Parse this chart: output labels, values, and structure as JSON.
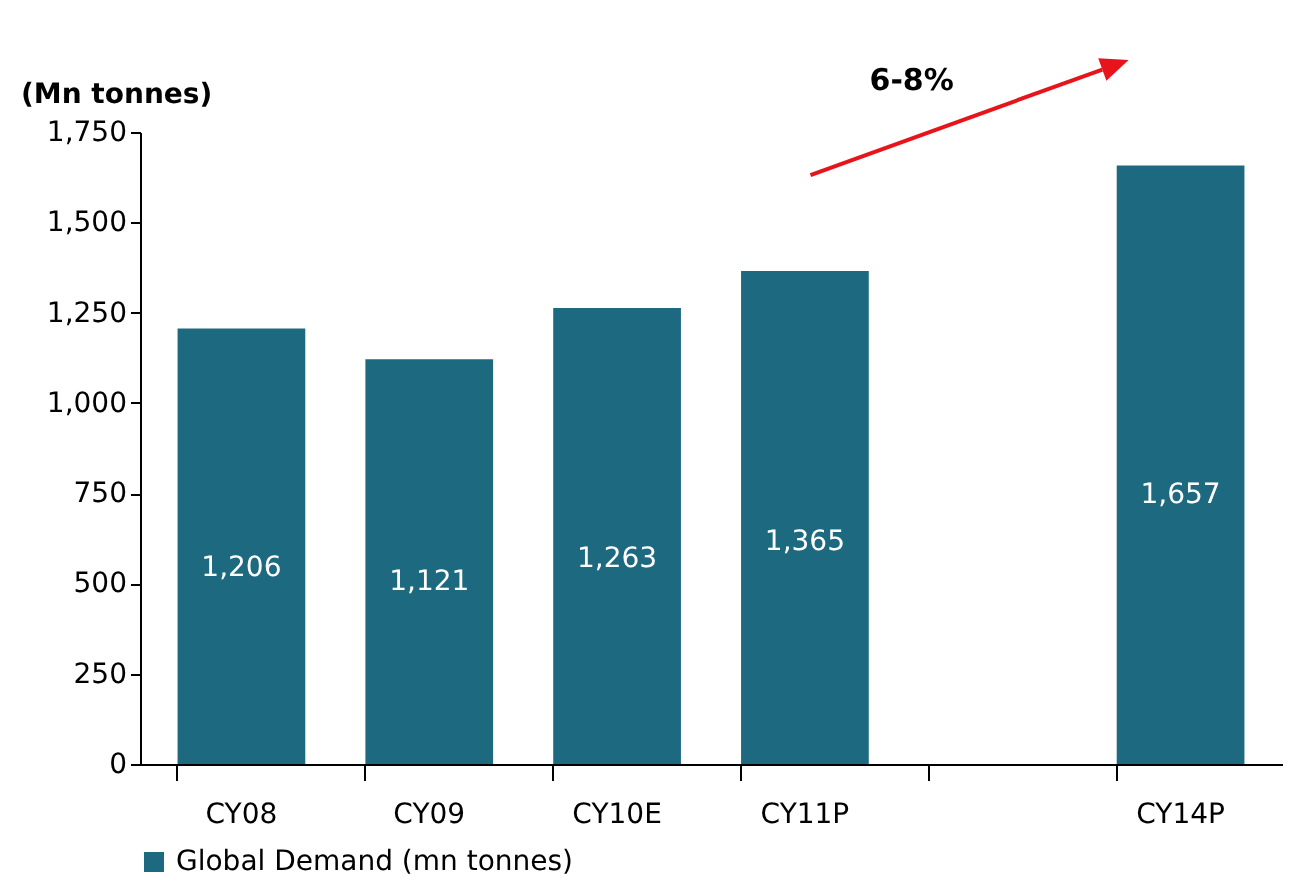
{
  "chart_data": {
    "type": "bar",
    "ylabel": "(Mn tonnes)",
    "categories": [
      "CY08",
      "CY09",
      "CY10E",
      "CY11P",
      null,
      "CY14P"
    ],
    "series": [
      {
        "name": "Global Demand (mn tonnes)",
        "color": "#1d6a80",
        "values": [
          1206,
          1121,
          1263,
          1365,
          null,
          1657
        ]
      }
    ],
    "ylim": [
      0,
      1750
    ],
    "yticks": [
      0,
      250,
      500,
      750,
      {
        "value": 1000,
        "label": "1,000"
      },
      {
        "value": 1250,
        "label": "1,250"
      },
      {
        "value": 1500,
        "label": "1,500"
      },
      {
        "value": 1750,
        "label": "1,750"
      }
    ],
    "value_labels": [
      "1,206",
      "1,121",
      "1,263",
      "1,365",
      null,
      "1,657"
    ],
    "legend": "bottom",
    "grid": false,
    "annotations": [
      "6-8%"
    ]
  }
}
